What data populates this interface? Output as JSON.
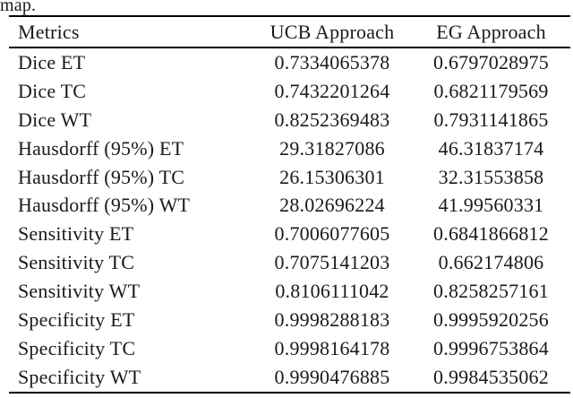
{
  "page": {
    "caption_fragment": "map."
  },
  "colors": {
    "background": "#ffffff",
    "text": "#1a1a1a",
    "rule": "#000000"
  },
  "table": {
    "headers": {
      "metric": "Metrics",
      "ucb": "UCB Approach",
      "eg": "EG Approach"
    },
    "rows": [
      {
        "metric": "Dice ET",
        "ucb": "0.7334065378",
        "eg": "0.6797028975"
      },
      {
        "metric": "Dice TC",
        "ucb": "0.7432201264",
        "eg": "0.6821179569"
      },
      {
        "metric": "Dice WT",
        "ucb": "0.8252369483",
        "eg": "0.7931141865"
      },
      {
        "metric": "Hausdorff (95%) ET",
        "ucb": "29.31827086",
        "eg": "46.31837174"
      },
      {
        "metric": "Hausdorff (95%) TC",
        "ucb": "26.15306301",
        "eg": "32.31553858"
      },
      {
        "metric": "Hausdorff (95%) WT",
        "ucb": "28.02696224",
        "eg": "41.99560331"
      },
      {
        "metric": "Sensitivity ET",
        "ucb": "0.7006077605",
        "eg": "0.6841866812"
      },
      {
        "metric": "Sensitivity TC",
        "ucb": "0.7075141203",
        "eg": "0.662174806"
      },
      {
        "metric": "Sensitivity WT",
        "ucb": "0.8106111042",
        "eg": "0.8258257161"
      },
      {
        "metric": "Specificity ET",
        "ucb": "0.9998288183",
        "eg": "0.9995920256"
      },
      {
        "metric": "Specificity TC",
        "ucb": "0.9998164178",
        "eg": "0.9996753864"
      },
      {
        "metric": "Specificity WT",
        "ucb": "0.9990476885",
        "eg": "0.9984535062"
      }
    ]
  }
}
